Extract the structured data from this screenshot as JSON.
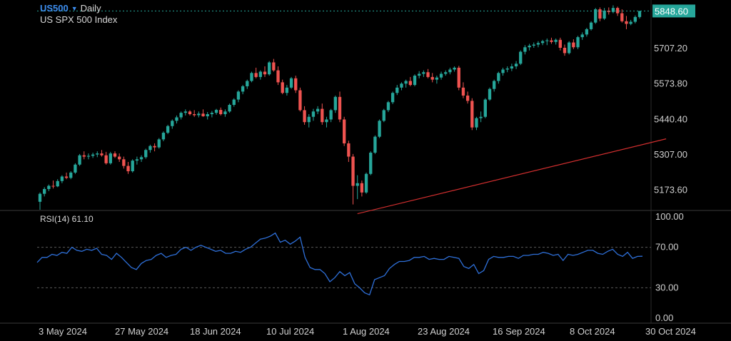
{
  "header": {
    "symbol": "US500",
    "timeframe": "Daily",
    "description": "US SPX 500 Index",
    "last_price": "5848.60"
  },
  "colors": {
    "up": "#26a69a",
    "down": "#ef5350",
    "trendline": "#d32f2f",
    "rsi_line": "#2e6fd8",
    "price_badge": "#26a69a"
  },
  "chart_data": [
    {
      "type": "candlestick",
      "ylim": [
        5100,
        5890
      ],
      "price_ticks": [
        "5707.20",
        "5573.80",
        "5440.40",
        "5307.00",
        "5173.60"
      ],
      "x_ticks": [
        "3 May 2024",
        "27 May 2024",
        "18 Jun 2024",
        "10 Jul 2024",
        "1 Aug 2024",
        "23 Aug 2024",
        "16 Sep 2024",
        "8 Oct 2024",
        "30 Oct 2024"
      ],
      "ohlc": [
        [
          5130,
          5165,
          5100,
          5160
        ],
        [
          5160,
          5185,
          5150,
          5178
        ],
        [
          5178,
          5195,
          5170,
          5190
        ],
        [
          5190,
          5210,
          5180,
          5188
        ],
        [
          5188,
          5215,
          5185,
          5208
        ],
        [
          5208,
          5230,
          5200,
          5225
        ],
        [
          5225,
          5240,
          5215,
          5220
        ],
        [
          5220,
          5245,
          5215,
          5240
        ],
        [
          5240,
          5275,
          5235,
          5270
        ],
        [
          5270,
          5310,
          5265,
          5305
        ],
        [
          5305,
          5320,
          5290,
          5300
        ],
        [
          5300,
          5312,
          5290,
          5303
        ],
        [
          5303,
          5315,
          5295,
          5308
        ],
        [
          5308,
          5320,
          5298,
          5312
        ],
        [
          5312,
          5325,
          5300,
          5305
        ],
        [
          5305,
          5318,
          5270,
          5275
        ],
        [
          5275,
          5318,
          5270,
          5312
        ],
        [
          5312,
          5320,
          5295,
          5300
        ],
        [
          5300,
          5312,
          5280,
          5290
        ],
        [
          5290,
          5300,
          5255,
          5265
        ],
        [
          5265,
          5280,
          5235,
          5245
        ],
        [
          5245,
          5290,
          5240,
          5285
        ],
        [
          5285,
          5300,
          5270,
          5290
        ],
        [
          5290,
          5305,
          5280,
          5298
        ],
        [
          5298,
          5330,
          5292,
          5325
        ],
        [
          5325,
          5345,
          5315,
          5340
        ],
        [
          5340,
          5350,
          5320,
          5335
        ],
        [
          5335,
          5370,
          5330,
          5365
        ],
        [
          5365,
          5395,
          5358,
          5390
        ],
        [
          5390,
          5420,
          5385,
          5415
        ],
        [
          5415,
          5440,
          5405,
          5435
        ],
        [
          5435,
          5455,
          5425,
          5448
        ],
        [
          5448,
          5470,
          5440,
          5465
        ],
        [
          5465,
          5478,
          5455,
          5470
        ],
        [
          5470,
          5475,
          5455,
          5460
        ],
        [
          5460,
          5475,
          5450,
          5456
        ],
        [
          5456,
          5470,
          5448,
          5462
        ],
        [
          5462,
          5478,
          5450,
          5452
        ],
        [
          5452,
          5468,
          5440,
          5460
        ],
        [
          5460,
          5472,
          5448,
          5465
        ],
        [
          5465,
          5480,
          5458,
          5476
        ],
        [
          5476,
          5485,
          5455,
          5460
        ],
        [
          5460,
          5478,
          5450,
          5470
        ],
        [
          5470,
          5500,
          5465,
          5495
        ],
        [
          5495,
          5520,
          5488,
          5515
        ],
        [
          5515,
          5550,
          5505,
          5545
        ],
        [
          5545,
          5570,
          5535,
          5565
        ],
        [
          5565,
          5590,
          5555,
          5585
        ],
        [
          5585,
          5620,
          5580,
          5615
        ],
        [
          5615,
          5635,
          5595,
          5600
        ],
        [
          5600,
          5625,
          5590,
          5620
        ],
        [
          5620,
          5640,
          5600,
          5610
        ],
        [
          5610,
          5660,
          5605,
          5655
        ],
        [
          5655,
          5668,
          5620,
          5625
        ],
        [
          5625,
          5640,
          5570,
          5580
        ],
        [
          5580,
          5590,
          5535,
          5540
        ],
        [
          5540,
          5570,
          5530,
          5560
        ],
        [
          5560,
          5600,
          5555,
          5595
        ],
        [
          5595,
          5605,
          5540,
          5550
        ],
        [
          5550,
          5560,
          5470,
          5475
        ],
        [
          5475,
          5490,
          5420,
          5430
        ],
        [
          5430,
          5460,
          5410,
          5450
        ],
        [
          5450,
          5480,
          5435,
          5470
        ],
        [
          5470,
          5490,
          5460,
          5480
        ],
        [
          5480,
          5500,
          5420,
          5430
        ],
        [
          5430,
          5450,
          5410,
          5440
        ],
        [
          5440,
          5480,
          5430,
          5475
        ],
        [
          5475,
          5530,
          5465,
          5525
        ],
        [
          5525,
          5545,
          5430,
          5440
        ],
        [
          5440,
          5450,
          5340,
          5350
        ],
        [
          5350,
          5360,
          5280,
          5300
        ],
        [
          5300,
          5310,
          5120,
          5190
        ],
        [
          5190,
          5230,
          5140,
          5200
        ],
        [
          5200,
          5210,
          5150,
          5165
        ],
        [
          5165,
          5240,
          5160,
          5235
        ],
        [
          5235,
          5320,
          5230,
          5315
        ],
        [
          5315,
          5380,
          5310,
          5375
        ],
        [
          5375,
          5440,
          5370,
          5435
        ],
        [
          5435,
          5480,
          5430,
          5475
        ],
        [
          5475,
          5510,
          5468,
          5505
        ],
        [
          5505,
          5545,
          5498,
          5540
        ],
        [
          5540,
          5570,
          5532,
          5560
        ],
        [
          5560,
          5580,
          5550,
          5575
        ],
        [
          5575,
          5590,
          5560,
          5585
        ],
        [
          5585,
          5600,
          5565,
          5570
        ],
        [
          5570,
          5610,
          5565,
          5605
        ],
        [
          5605,
          5622,
          5595,
          5612
        ],
        [
          5612,
          5625,
          5600,
          5618
        ],
        [
          5618,
          5630,
          5595,
          5600
        ],
        [
          5600,
          5615,
          5580,
          5590
        ],
        [
          5590,
          5605,
          5575,
          5598
        ],
        [
          5598,
          5620,
          5590,
          5612
        ],
        [
          5612,
          5625,
          5605,
          5618
        ],
        [
          5618,
          5635,
          5610,
          5628
        ],
        [
          5628,
          5640,
          5620,
          5635
        ],
        [
          5635,
          5642,
          5550,
          5560
        ],
        [
          5560,
          5580,
          5520,
          5530
        ],
        [
          5530,
          5545,
          5500,
          5510
        ],
        [
          5510,
          5520,
          5400,
          5410
        ],
        [
          5410,
          5450,
          5400,
          5445
        ],
        [
          5445,
          5470,
          5430,
          5450
        ],
        [
          5450,
          5520,
          5445,
          5515
        ],
        [
          5515,
          5560,
          5510,
          5555
        ],
        [
          5555,
          5590,
          5545,
          5585
        ],
        [
          5585,
          5620,
          5575,
          5615
        ],
        [
          5615,
          5635,
          5605,
          5628
        ],
        [
          5628,
          5640,
          5618,
          5632
        ],
        [
          5632,
          5650,
          5622,
          5640
        ],
        [
          5640,
          5660,
          5630,
          5650
        ],
        [
          5650,
          5700,
          5645,
          5695
        ],
        [
          5695,
          5720,
          5685,
          5712
        ],
        [
          5712,
          5725,
          5700,
          5718
        ],
        [
          5718,
          5730,
          5710,
          5722
        ],
        [
          5722,
          5735,
          5712,
          5728
        ],
        [
          5728,
          5740,
          5720,
          5735
        ],
        [
          5735,
          5745,
          5720,
          5738
        ],
        [
          5738,
          5748,
          5725,
          5732
        ],
        [
          5732,
          5745,
          5722,
          5740
        ],
        [
          5740,
          5748,
          5700,
          5710
        ],
        [
          5710,
          5722,
          5680,
          5690
        ],
        [
          5690,
          5735,
          5685,
          5730
        ],
        [
          5730,
          5742,
          5705,
          5712
        ],
        [
          5712,
          5755,
          5705,
          5750
        ],
        [
          5750,
          5768,
          5740,
          5760
        ],
        [
          5760,
          5785,
          5752,
          5780
        ],
        [
          5780,
          5810,
          5775,
          5805
        ],
        [
          5805,
          5860,
          5800,
          5855
        ],
        [
          5855,
          5862,
          5810,
          5820
        ],
        [
          5820,
          5860,
          5815,
          5850
        ],
        [
          5850,
          5862,
          5835,
          5845
        ],
        [
          5845,
          5870,
          5840,
          5860
        ],
        [
          5860,
          5865,
          5830,
          5840
        ],
        [
          5840,
          5855,
          5805,
          5810
        ],
        [
          5810,
          5830,
          5780,
          5800
        ],
        [
          5800,
          5815,
          5795,
          5808
        ],
        [
          5808,
          5832,
          5802,
          5826
        ],
        [
          5826,
          5849,
          5820,
          5848.6
        ]
      ],
      "trendline": {
        "from": [
          72,
          5085
        ],
        "to": [
          142,
          5367
        ]
      }
    },
    {
      "type": "line",
      "title": "RSI(14) 61.10",
      "ylim": [
        0,
        100
      ],
      "y_ticks": [
        "100.00",
        "70.00",
        "30.00",
        "0.00"
      ],
      "levels": [
        70,
        30
      ],
      "series": [
        {
          "values": [
            55,
            60,
            60,
            63,
            62,
            65,
            64,
            70,
            67,
            66,
            68,
            67,
            69,
            63,
            62,
            58,
            64,
            60,
            55,
            50,
            48,
            54,
            57,
            58,
            62,
            64,
            60,
            62,
            63,
            68,
            70,
            67,
            70,
            72,
            70,
            68,
            66,
            67,
            64,
            64,
            66,
            65,
            68,
            70,
            74,
            78,
            79,
            81,
            84,
            75,
            77,
            73,
            76,
            80,
            60,
            50,
            48,
            48,
            44,
            36,
            40,
            46,
            42,
            45,
            34,
            30,
            25,
            23,
            38,
            40,
            42,
            49,
            53,
            56,
            56,
            57,
            60,
            60,
            61,
            58,
            59,
            58,
            58,
            61,
            60,
            59,
            51,
            49,
            53,
            44,
            47,
            58,
            61,
            60,
            60,
            61,
            61,
            59,
            62,
            62,
            63,
            63,
            65,
            64,
            62,
            63,
            57,
            63,
            62,
            63,
            65,
            67,
            67,
            64,
            63,
            66,
            68,
            63,
            61,
            65,
            59,
            61,
            61.1
          ]
        }
      ]
    }
  ]
}
